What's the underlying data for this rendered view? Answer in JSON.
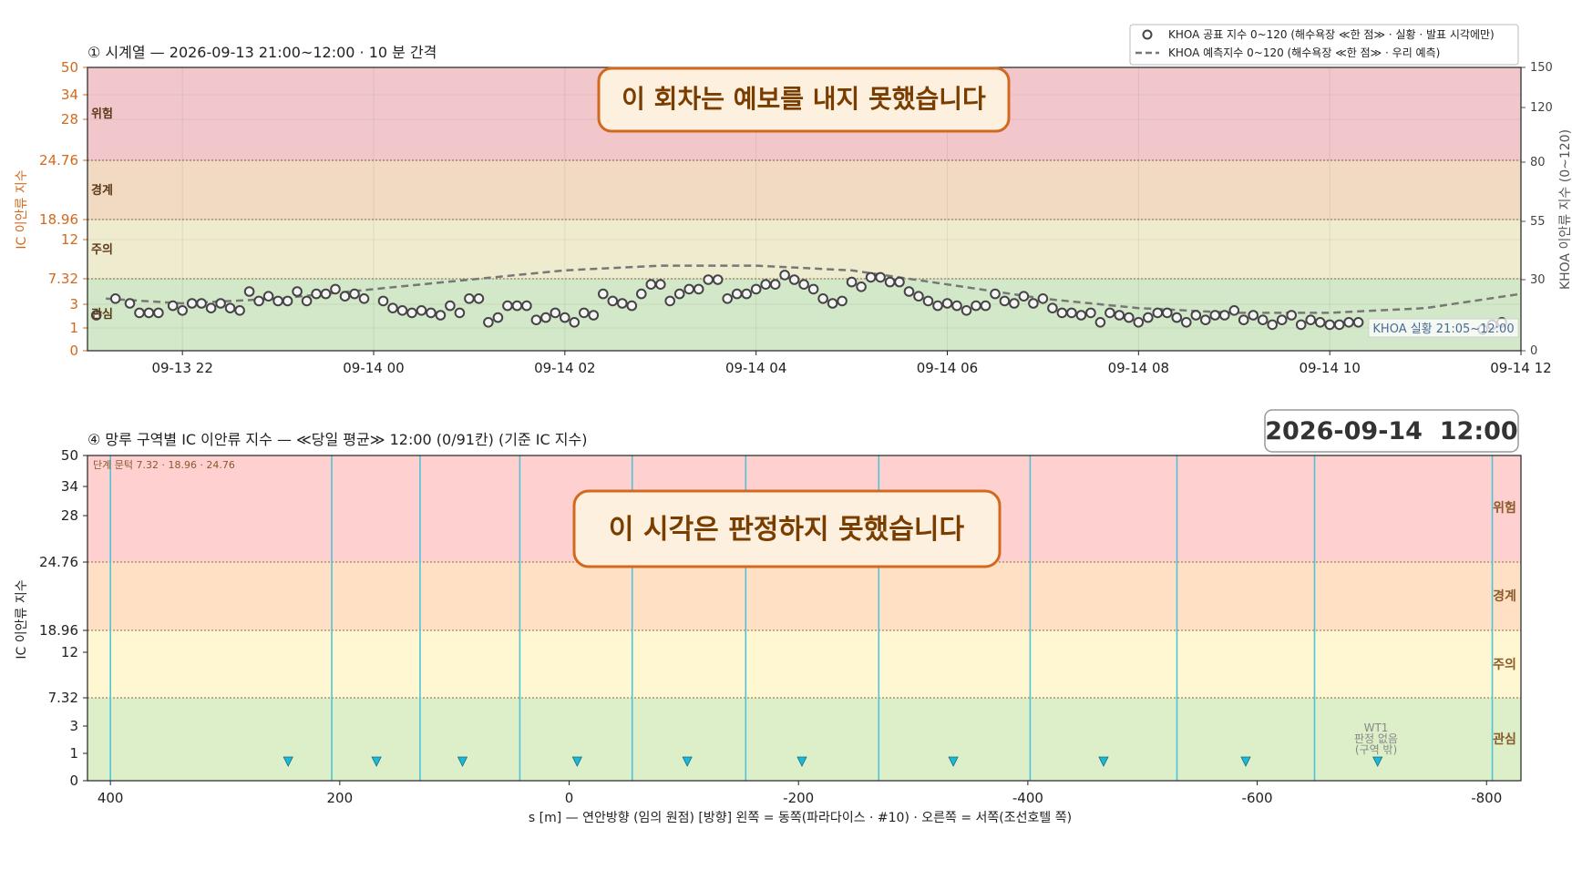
{
  "colors": {
    "zone_danger": "#f2c7cc",
    "zone_warning": "#f2dac2",
    "zone_caution": "#efebcf",
    "zone_interest": "#d3e8c8",
    "zone2_danger": "#ffd0d0",
    "zone2_warning": "#ffe0c4",
    "zone2_caution": "#fff6d2",
    "zone2_interest": "#dcefc9",
    "ic_axis": "#d2691e",
    "khoa_point": "#444444",
    "forecast_line": "#777777",
    "boundary": "#4fc3d9",
    "banner_border": "#d2691e",
    "banner_fill": "#fdf0df",
    "banner_text": "#7a3d00"
  },
  "top": {
    "title": "① 시계열 — 2026-09-13 21:00~12:00 · 10 분 간격",
    "banner": "이 회차는 예보를 내지 못했습니다",
    "khoa_note": "KHOA 실황 21:05~12:00",
    "legend": [
      "KHOA 공표 지수 0~120 (해수욕장 ≪한 점≫ · 실황 · 발표 시각에만)",
      "KHOA 예측지수 0~120 (해수욕장 ≪한 점≫ · 우리 예측)"
    ],
    "zone_labels": [
      "위험",
      "경계",
      "주의",
      "관심"
    ]
  },
  "bottom": {
    "title": "④ 망루 구역별 IC 이안류 지수 — ≪당일 평균≫ 12:00  (0/91칸)   (기준 IC 지수)",
    "datetime_badge": "2026-09-14  12:00",
    "threshold_note": "단계 문턱 7.32 · 18.96 · 24.76",
    "banner": "이 시각은 판정하지 못했습니다",
    "tower_label": [
      "WT1",
      "판정 없음",
      "(구역 밖)"
    ],
    "zone_labels": [
      "위험",
      "경계",
      "주의",
      "관심"
    ]
  },
  "chart_data": [
    {
      "type": "scatter",
      "title": "① 시계열 — 2026-09-13 21:00~12:00 · 10 분 간격",
      "ylabel": "IC 이안류 지수",
      "y2label": "KHOA 이안류 지수 (0~120)",
      "x_ticks": [
        "09-13 22",
        "09-14 00",
        "09-14 02",
        "09-14 04",
        "09-14 06",
        "09-14 08",
        "09-14 10",
        "09-14 12"
      ],
      "y_ticks": [
        0,
        1,
        3,
        7.32,
        12,
        18.96,
        24.76,
        28,
        34,
        50
      ],
      "y2_ticks": [
        0,
        30,
        55,
        80,
        120,
        150
      ],
      "zone_thresholds": [
        7.32,
        18.96,
        24.76
      ],
      "x_hours_range": [
        -2.8,
        12.0
      ],
      "y2_range": [
        0,
        150
      ],
      "series": [
        {
          "name": "KHOA 공표 지수 0~120 (해수욕장 ≪한 점≫ · 실황 · 발표 시각에만)",
          "x_hours": [
            -2.9,
            -2.7,
            -2.55,
            -2.45,
            -2.35,
            -2.25,
            -2.1,
            -2.0,
            -1.9,
            -1.8,
            -1.7,
            -1.6,
            -1.5,
            -1.4,
            -1.3,
            -1.2,
            -1.1,
            -1.0,
            -0.9,
            -0.8,
            -0.7,
            -0.6,
            -0.5,
            -0.4,
            -0.3,
            -0.2,
            -0.1,
            0.1,
            0.2,
            0.3,
            0.4,
            0.5,
            0.6,
            0.7,
            0.8,
            0.9,
            1.0,
            1.1,
            1.2,
            1.3,
            1.4,
            1.5,
            1.6,
            1.7,
            1.8,
            1.9,
            2.0,
            2.1,
            2.2,
            2.3,
            2.4,
            2.5,
            2.6,
            2.7,
            2.8,
            2.9,
            3.0,
            3.1,
            3.2,
            3.3,
            3.4,
            3.5,
            3.6,
            3.7,
            3.8,
            3.9,
            4.0,
            4.1,
            4.2,
            4.3,
            4.4,
            4.5,
            4.6,
            4.7,
            4.8,
            4.9,
            5.0,
            5.1,
            5.2,
            5.3,
            5.4,
            5.5,
            5.6,
            5.7,
            5.8,
            5.9,
            6.0,
            6.1,
            6.2,
            6.3,
            6.4,
            6.5,
            6.6,
            6.7,
            6.8,
            6.9,
            7.0,
            7.1,
            7.2,
            7.3,
            7.4,
            7.5,
            7.6,
            7.7,
            7.8,
            7.9,
            8.0,
            8.1,
            8.2,
            8.3,
            8.4,
            8.5,
            8.6,
            8.7,
            8.8,
            8.9,
            9.0,
            9.1,
            9.2,
            9.3,
            9.4,
            9.5,
            9.6,
            9.7,
            9.8,
            9.9,
            10.0,
            10.1,
            10.2,
            10.3,
            11.6,
            11.7,
            11.8
          ],
          "y2_values": [
            15,
            22,
            20,
            16,
            16,
            16,
            19,
            17,
            20,
            20,
            18,
            20,
            18,
            17,
            25,
            21,
            23,
            21,
            21,
            25,
            21,
            24,
            24,
            26,
            23,
            24,
            22,
            21,
            18,
            17,
            16,
            17,
            16,
            15,
            19,
            16,
            22,
            22,
            12,
            14,
            19,
            19,
            19,
            13,
            14,
            16,
            14,
            12,
            16,
            15,
            24,
            21,
            20,
            19,
            24,
            28,
            28,
            21,
            24,
            26,
            26,
            30,
            30,
            22,
            24,
            24,
            26,
            28,
            28,
            32,
            30,
            28,
            26,
            22,
            20,
            21,
            29,
            27,
            31,
            31,
            29,
            29,
            25,
            23,
            21,
            19,
            20,
            19,
            17,
            19,
            19,
            24,
            21,
            20,
            23,
            20,
            22,
            18,
            16,
            16,
            15,
            16,
            12,
            16,
            15,
            14,
            12,
            14,
            16,
            16,
            14,
            12,
            15,
            13,
            15,
            15,
            17,
            13,
            15,
            13,
            11,
            13,
            15,
            11,
            13,
            12,
            11,
            11,
            12,
            12,
            9,
            11,
            12,
            10,
            10,
            10,
            10,
            10,
            10,
            11,
            11
          ],
          "note": "KHOA 실황 21:05~12:00"
        },
        {
          "name": "KHOA 예측지수 0~120 (해수욕장 ≪한 점≫ · 우리 예측)",
          "x_hours": [
            -2.8,
            -2.0,
            -1.0,
            0.0,
            1.0,
            2.0,
            3.0,
            4.0,
            5.0,
            6.0,
            7.0,
            8.0,
            9.0,
            10.0,
            11.0,
            12.0
          ],
          "y2_values": [
            22,
            20,
            22,
            26,
            30,
            34,
            36,
            36,
            34,
            28,
            22,
            18,
            16,
            16,
            18,
            24
          ]
        }
      ]
    },
    {
      "type": "scatter",
      "title": "④ 망루 구역별 IC 이안류 지수 — ≪당일 평균≫ 12:00  (0/91칸)   (기준 IC 지수)",
      "xlabel": "s [m] — 연안방향 (임의 원점)     [방향] 왼쪽 = 동쪽(파라다이스 · #10) · 오른쪽 = 서쪽(조선호텔 쪽)",
      "ylabel": "IC 이안류 지수",
      "x_ticks": [
        400,
        200,
        0,
        -200,
        -400,
        -600,
        -800
      ],
      "y_ticks": [
        0,
        1,
        3,
        7.32,
        12,
        18.96,
        24.76,
        28,
        34,
        50
      ],
      "xlim": [
        420,
        -830
      ],
      "zone_thresholds": [
        7.32,
        18.96,
        24.76
      ],
      "zone_boundaries_s": [
        400,
        207,
        130,
        43,
        -55,
        -154,
        -270,
        -402,
        -530,
        -650,
        -805
      ],
      "tower_markers_s": [
        245,
        168,
        93,
        -7,
        -103,
        -203,
        -335,
        -466,
        -590,
        -705
      ]
    }
  ]
}
